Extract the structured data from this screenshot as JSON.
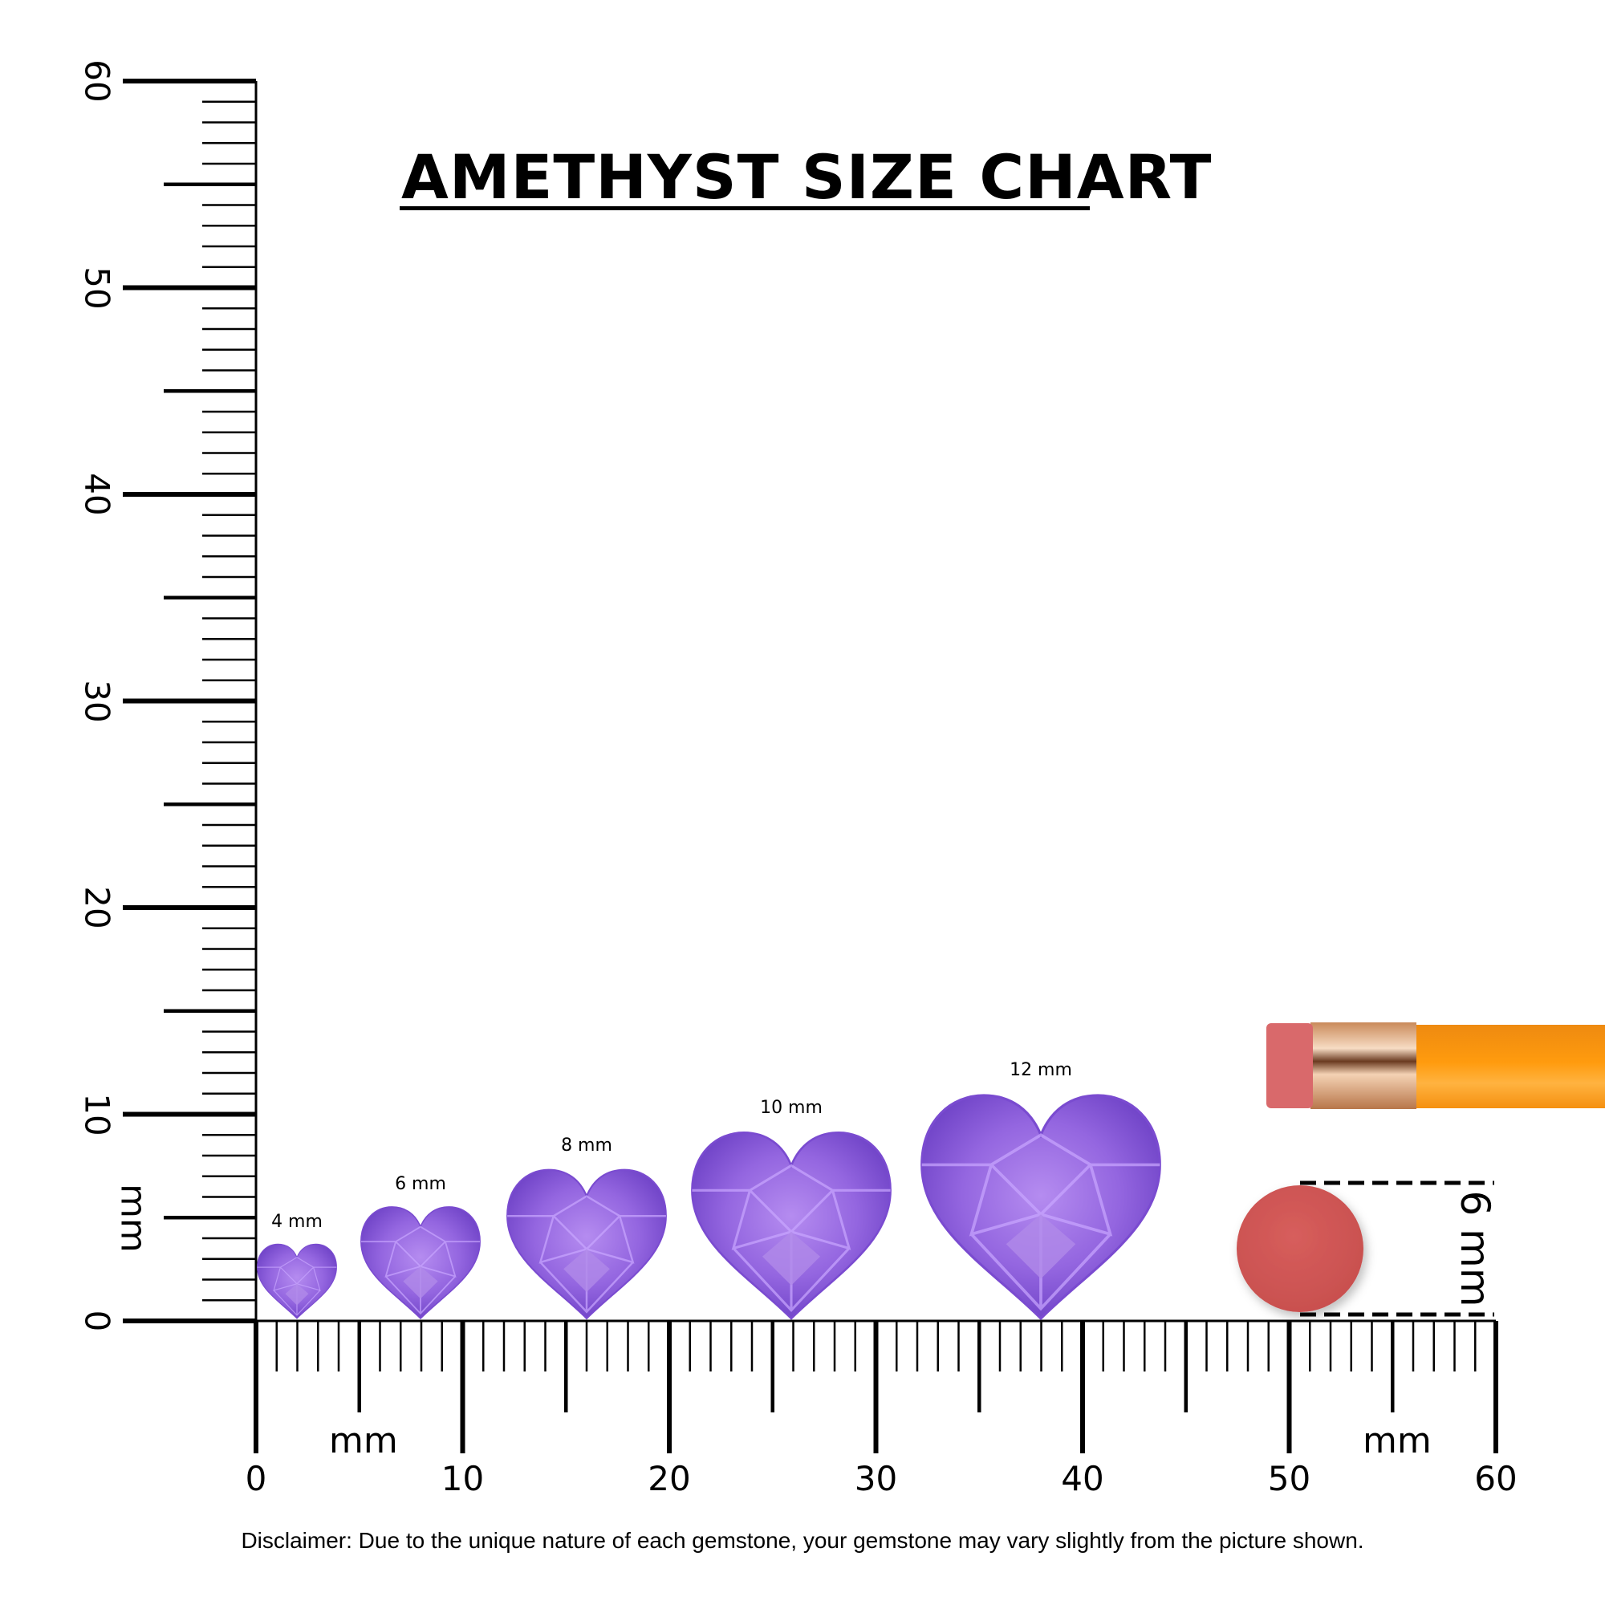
{
  "title": "AMETHYST SIZE CHART",
  "ruler": {
    "unit": "mm",
    "min": 0,
    "max": 60,
    "major_step": 10,
    "labels": [
      "0",
      "10",
      "20",
      "30",
      "40",
      "50",
      "60"
    ]
  },
  "gems": [
    {
      "label": "4 mm",
      "size_mm": 4
    },
    {
      "label": "6 mm",
      "size_mm": 6
    },
    {
      "label": "8 mm",
      "size_mm": 8
    },
    {
      "label": "10 mm",
      "size_mm": 10
    },
    {
      "label": "12 mm",
      "size_mm": 12
    }
  ],
  "gem_shape": "heart",
  "gem_color": "#8a5bd6",
  "reference": {
    "object": "pencil-eraser",
    "label": "6 mm",
    "eraser_color": "#d45a5a",
    "pencil_color": "#ff9a10"
  },
  "disclaimer": "Disclaimer: Due to the unique nature of each gemstone, your gemstone may vary slightly from the picture shown."
}
